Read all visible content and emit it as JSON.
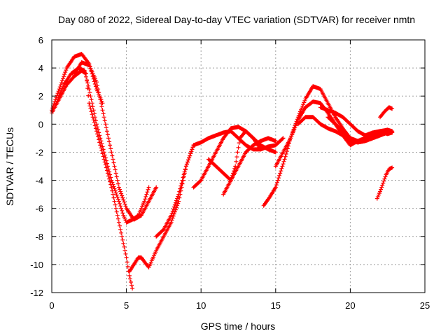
{
  "chart_data": {
    "type": "scatter",
    "title": "Day 080 of 2022, Sidereal Day-to-day VTEC variation (SDTVAR) for receiver nmtn",
    "xlabel": "GPS time / hours",
    "ylabel": "SDTVAR / TECUs",
    "xlim": [
      0,
      25
    ],
    "ylim": [
      -12,
      6
    ],
    "xticks": [
      0,
      5,
      10,
      15,
      20,
      25
    ],
    "yticks": [
      -12,
      -10,
      -8,
      -6,
      -4,
      -2,
      0,
      2,
      4,
      6
    ],
    "grid": true,
    "marker": "+",
    "color": "#ff0000",
    "series": [
      {
        "x": [
          0.0,
          0.5,
          1.0,
          1.5,
          2.0,
          2.5,
          3.0,
          3.4
        ],
        "y": [
          1.0,
          2.5,
          4.0,
          4.8,
          5.0,
          4.3,
          2.5,
          1.5
        ]
      },
      {
        "x": [
          0.0,
          0.5,
          1.0,
          1.5,
          2.0,
          2.3,
          2.5,
          3.0,
          3.5,
          4.0,
          4.3,
          4.6,
          4.8,
          5.0,
          5.2,
          5.4
        ],
        "y": [
          0.8,
          1.8,
          2.8,
          3.4,
          3.8,
          3.6,
          1.5,
          -0.5,
          -2.5,
          -4.5,
          -6.0,
          -7.5,
          -8.5,
          -9.5,
          -10.8,
          -11.7
        ]
      },
      {
        "x": [
          0.3,
          0.8,
          1.3,
          1.8,
          2.2,
          2.5,
          3.0,
          3.5,
          4.0,
          4.5,
          4.8,
          5.0,
          5.4,
          5.8,
          6.2,
          6.5
        ],
        "y": [
          1.5,
          2.8,
          3.6,
          4.0,
          3.8,
          2.5,
          0.0,
          -2.0,
          -4.0,
          -5.5,
          -6.5,
          -7.0,
          -6.8,
          -6.5,
          -5.5,
          -4.5
        ]
      },
      {
        "x": [
          1.5,
          2.0,
          2.5,
          3.0,
          3.5,
          4.0,
          4.5,
          5.0,
          5.5,
          6.0,
          6.5,
          7.0
        ],
        "y": [
          3.5,
          4.4,
          4.2,
          3.0,
          0.5,
          -2.0,
          -4.5,
          -6.0,
          -6.8,
          -6.5,
          -5.5,
          -4.5
        ]
      },
      {
        "x": [
          5.2,
          5.5,
          5.8,
          6.0,
          6.2,
          6.5,
          7.0,
          7.5,
          8.0,
          8.5,
          9.0,
          9.5
        ],
        "y": [
          -10.5,
          -10.0,
          -9.5,
          -9.5,
          -9.8,
          -10.2,
          -9.0,
          -8.0,
          -7.0,
          -5.5,
          -3.0,
          -1.5
        ]
      },
      {
        "x": [
          7.0,
          7.5,
          8.0,
          8.5,
          9.0,
          9.5,
          10.0,
          10.5,
          11.0,
          11.5,
          12.0,
          12.5,
          13.0,
          13.5,
          14.0,
          14.5,
          15.0,
          15.5
        ],
        "y": [
          -8.0,
          -7.5,
          -6.5,
          -5.0,
          -3.0,
          -1.5,
          -1.3,
          -1.0,
          -0.8,
          -0.6,
          -0.5,
          -1.0,
          -1.5,
          -1.8,
          -1.8,
          -1.6,
          -1.5,
          -1.0
        ]
      },
      {
        "x": [
          9.5,
          10.0,
          10.5,
          11.0,
          11.5,
          12.0,
          12.5,
          13.0,
          13.5,
          14.0,
          14.5,
          15.0
        ],
        "y": [
          -4.5,
          -4.0,
          -3.0,
          -2.0,
          -1.0,
          -0.3,
          -0.2,
          -0.5,
          -1.0,
          -1.5,
          -1.8,
          -2.0
        ]
      },
      {
        "x": [
          10.5,
          11.0,
          11.5,
          12.0,
          12.5,
          13.0,
          13.5,
          14.0,
          14.5,
          15.0
        ],
        "y": [
          -2.5,
          -3.0,
          -3.5,
          -4.0,
          -3.0,
          -2.0,
          -1.5,
          -1.2,
          -1.0,
          -1.2
        ]
      },
      {
        "x": [
          11.5,
          12.0,
          12.3,
          12.6,
          13.0,
          13.5,
          14.0
        ],
        "y": [
          -5.0,
          -4.0,
          -3.0,
          -1.0,
          -0.5,
          -1.0,
          -1.8
        ]
      },
      {
        "x": [
          14.2,
          14.6,
          15.0,
          15.3,
          15.6,
          16.0,
          16.5,
          17.0,
          17.5,
          18.0,
          18.5,
          19.0,
          19.5,
          20.0,
          20.5,
          21.0,
          21.5,
          22.0,
          22.5,
          22.8
        ],
        "y": [
          -5.8,
          -5.2,
          -4.5,
          -3.5,
          -2.5,
          -1.0,
          0.5,
          1.8,
          2.7,
          2.5,
          1.5,
          0.5,
          -0.3,
          -1.0,
          -1.2,
          -1.0,
          -0.8,
          -0.5,
          -0.4,
          -0.5
        ]
      },
      {
        "x": [
          15.0,
          15.5,
          16.0,
          16.5,
          17.0,
          17.5,
          18.0,
          18.5,
          19.0,
          19.5,
          20.0,
          20.5,
          21.0,
          21.5,
          22.0,
          22.5,
          22.8
        ],
        "y": [
          -3.0,
          -2.0,
          -1.0,
          0.3,
          1.2,
          1.6,
          1.5,
          0.8,
          0.0,
          -0.8,
          -1.5,
          -1.2,
          -1.0,
          -1.0,
          -0.5,
          -0.7,
          -0.6
        ]
      },
      {
        "x": [
          16.5,
          17.0,
          17.5,
          18.0,
          18.5,
          19.0,
          19.5,
          20.0,
          20.5,
          21.0,
          21.5,
          22.0,
          22.5,
          22.8
        ],
        "y": [
          0.0,
          0.5,
          0.5,
          0.0,
          -0.3,
          -0.5,
          -0.8,
          -1.2,
          -1.3,
          -1.2,
          -1.0,
          -0.8,
          -0.5,
          -0.6
        ]
      },
      {
        "x": [
          18.0,
          18.5,
          19.0,
          19.5,
          20.0,
          20.5,
          21.0,
          21.5,
          22.0,
          22.5,
          22.8
        ],
        "y": [
          1.2,
          1.0,
          0.8,
          0.5,
          0.0,
          -0.5,
          -0.8,
          -0.6,
          -0.5,
          -0.5,
          -0.6
        ]
      },
      {
        "x": [
          18.5,
          19.0,
          19.5,
          20.0,
          20.5,
          21.0,
          21.5,
          22.0,
          22.5,
          22.8
        ],
        "y": [
          0.5,
          0.0,
          -0.5,
          -1.0,
          -1.3,
          -1.2,
          -1.0,
          -0.8,
          -0.6,
          -0.5
        ]
      },
      {
        "x": [
          22.0,
          22.3,
          22.6,
          22.8
        ],
        "y": [
          0.5,
          0.9,
          1.2,
          1.1
        ]
      },
      {
        "x": [
          21.8,
          22.0,
          22.2,
          22.4,
          22.6,
          22.8
        ],
        "y": [
          -5.3,
          -4.8,
          -4.2,
          -3.6,
          -3.2,
          -3.1
        ]
      }
    ]
  }
}
